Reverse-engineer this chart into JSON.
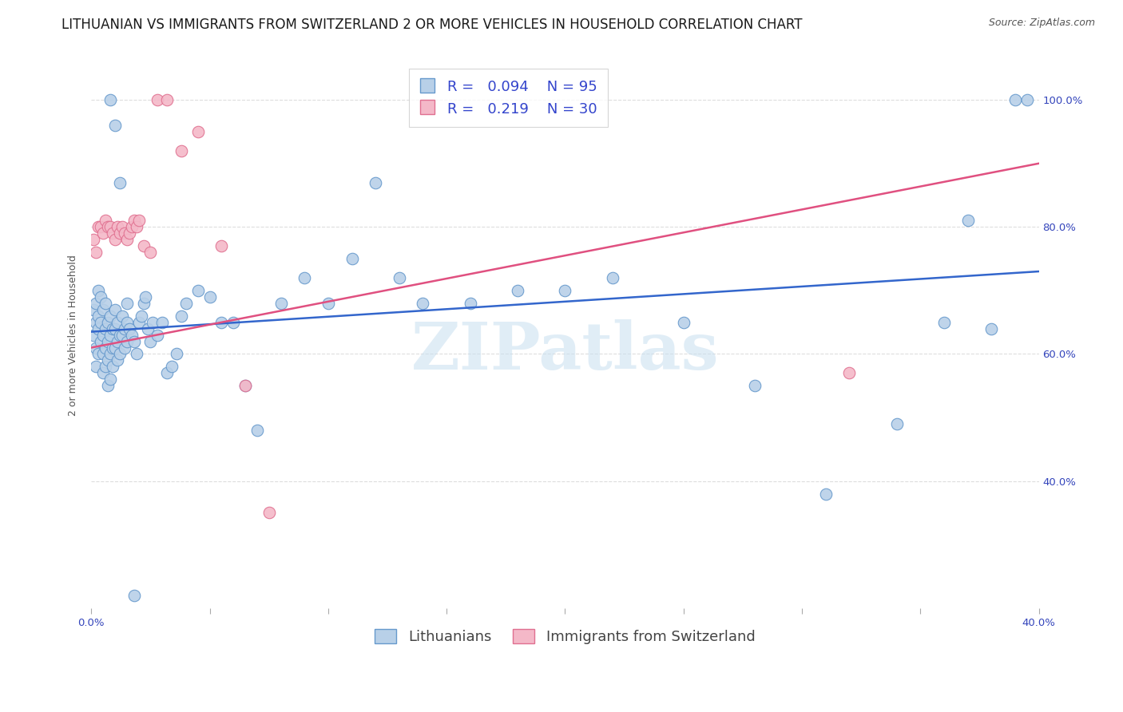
{
  "title": "LITHUANIAN VS IMMIGRANTS FROM SWITZERLAND 2 OR MORE VEHICLES IN HOUSEHOLD CORRELATION CHART",
  "source": "Source: ZipAtlas.com",
  "ylabel": "2 or more Vehicles in Household",
  "legend_label_blue": "Lithuanians",
  "legend_label_pink": "Immigrants from Switzerland",
  "blue_R": 0.094,
  "blue_N": 95,
  "pink_R": 0.219,
  "pink_N": 30,
  "blue_color": "#b8d0e8",
  "blue_edge": "#6699cc",
  "pink_color": "#f4b8c8",
  "pink_edge": "#e07090",
  "blue_line_color": "#3366cc",
  "pink_line_color": "#e05080",
  "xmin": 0.0,
  "xmax": 0.4,
  "ymin": 0.2,
  "ymax": 1.06,
  "grid_color": "#dddddd",
  "title_fontsize": 12,
  "axis_label_fontsize": 9,
  "tick_fontsize": 9.5,
  "legend_fontsize": 13,
  "source_fontsize": 9,
  "watermark": "ZIPatlas",
  "blue_x": [
    0.001,
    0.001,
    0.002,
    0.002,
    0.002,
    0.002,
    0.003,
    0.003,
    0.003,
    0.003,
    0.004,
    0.004,
    0.004,
    0.005,
    0.005,
    0.005,
    0.005,
    0.006,
    0.006,
    0.006,
    0.006,
    0.007,
    0.007,
    0.007,
    0.007,
    0.008,
    0.008,
    0.008,
    0.008,
    0.009,
    0.009,
    0.009,
    0.01,
    0.01,
    0.01,
    0.011,
    0.011,
    0.011,
    0.012,
    0.012,
    0.013,
    0.013,
    0.014,
    0.014,
    0.015,
    0.015,
    0.016,
    0.017,
    0.018,
    0.019,
    0.02,
    0.021,
    0.022,
    0.023,
    0.024,
    0.025,
    0.026,
    0.028,
    0.03,
    0.032,
    0.034,
    0.036,
    0.038,
    0.04,
    0.045,
    0.05,
    0.055,
    0.06,
    0.065,
    0.07,
    0.08,
    0.09,
    0.1,
    0.11,
    0.12,
    0.13,
    0.14,
    0.16,
    0.18,
    0.2,
    0.22,
    0.25,
    0.28,
    0.31,
    0.34,
    0.36,
    0.37,
    0.38,
    0.39,
    0.395,
    0.008,
    0.01,
    0.012,
    0.015,
    0.018
  ],
  "blue_y": [
    0.67,
    0.63,
    0.65,
    0.68,
    0.61,
    0.58,
    0.7,
    0.66,
    0.64,
    0.6,
    0.69,
    0.65,
    0.62,
    0.67,
    0.63,
    0.6,
    0.57,
    0.68,
    0.64,
    0.61,
    0.58,
    0.65,
    0.62,
    0.59,
    0.55,
    0.66,
    0.63,
    0.6,
    0.56,
    0.64,
    0.61,
    0.58,
    0.67,
    0.64,
    0.61,
    0.65,
    0.62,
    0.59,
    0.63,
    0.6,
    0.66,
    0.63,
    0.64,
    0.61,
    0.65,
    0.62,
    0.64,
    0.63,
    0.62,
    0.6,
    0.65,
    0.66,
    0.68,
    0.69,
    0.64,
    0.62,
    0.65,
    0.63,
    0.65,
    0.57,
    0.58,
    0.6,
    0.66,
    0.68,
    0.7,
    0.69,
    0.65,
    0.65,
    0.55,
    0.48,
    0.68,
    0.72,
    0.68,
    0.75,
    0.87,
    0.72,
    0.68,
    0.68,
    0.7,
    0.7,
    0.72,
    0.65,
    0.55,
    0.38,
    0.49,
    0.65,
    0.81,
    0.64,
    1.0,
    1.0,
    1.0,
    0.96,
    0.87,
    0.68,
    0.22
  ],
  "pink_x": [
    0.001,
    0.002,
    0.003,
    0.004,
    0.005,
    0.006,
    0.007,
    0.008,
    0.009,
    0.01,
    0.011,
    0.012,
    0.013,
    0.014,
    0.015,
    0.016,
    0.017,
    0.018,
    0.019,
    0.02,
    0.022,
    0.025,
    0.028,
    0.032,
    0.038,
    0.045,
    0.055,
    0.065,
    0.075,
    0.32
  ],
  "pink_y": [
    0.78,
    0.76,
    0.8,
    0.8,
    0.79,
    0.81,
    0.8,
    0.8,
    0.79,
    0.78,
    0.8,
    0.79,
    0.8,
    0.79,
    0.78,
    0.79,
    0.8,
    0.81,
    0.8,
    0.81,
    0.77,
    0.76,
    1.0,
    1.0,
    0.92,
    0.95,
    0.77,
    0.55,
    0.35,
    0.57
  ]
}
